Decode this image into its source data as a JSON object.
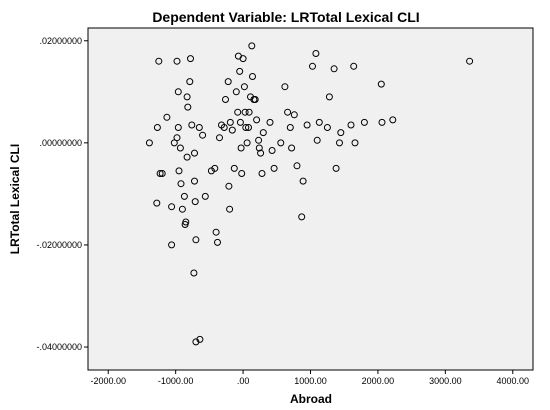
{
  "chart_data": {
    "type": "scatter",
    "title": "Dependent Variable: LRTotal Lexical CLI",
    "xlabel": "Abroad",
    "ylabel": "LRTotal Lexical CLI",
    "xlim": [
      -2300,
      4300
    ],
    "ylim": [
      -0.0445,
      0.0225
    ],
    "x_ticks": [
      -2000,
      -1000,
      0,
      1000,
      2000,
      3000,
      4000
    ],
    "x_tick_labels": [
      "-2000.00",
      "-1000.00",
      ".00",
      "1000.00",
      "2000.00",
      "3000.00",
      "4000.00"
    ],
    "y_ticks": [
      0.02,
      0,
      -0.02,
      -0.04
    ],
    "y_tick_labels": [
      ".02000000",
      ".00000000",
      "-.02000000",
      "-.04000000"
    ],
    "background_color": "#f0f0f0",
    "point_color": "#000000",
    "grid": false,
    "points": [
      {
        "x": -1250,
        "y": 0.016
      },
      {
        "x": -1270,
        "y": 0.003
      },
      {
        "x": -1390,
        "y": 0.0
      },
      {
        "x": -1230,
        "y": -0.006
      },
      {
        "x": -1130,
        "y": 0.005
      },
      {
        "x": -1280,
        "y": -0.0118
      },
      {
        "x": -1200,
        "y": -0.006
      },
      {
        "x": -1060,
        "y": -0.02
      },
      {
        "x": -1060,
        "y": -0.0125
      },
      {
        "x": -1020,
        "y": 0.0
      },
      {
        "x": -980,
        "y": 0.016
      },
      {
        "x": -960,
        "y": 0.01
      },
      {
        "x": -960,
        "y": 0.003
      },
      {
        "x": -980,
        "y": 0.001
      },
      {
        "x": -930,
        "y": -0.001
      },
      {
        "x": -950,
        "y": -0.0055
      },
      {
        "x": -920,
        "y": -0.008
      },
      {
        "x": -900,
        "y": -0.013
      },
      {
        "x": -870,
        "y": -0.0105
      },
      {
        "x": -860,
        "y": -0.016
      },
      {
        "x": -830,
        "y": -0.0028
      },
      {
        "x": -850,
        "y": -0.0155
      },
      {
        "x": -830,
        "y": 0.009
      },
      {
        "x": -820,
        "y": 0.007
      },
      {
        "x": -760,
        "y": 0.0035
      },
      {
        "x": -780,
        "y": 0.0165
      },
      {
        "x": -790,
        "y": 0.012
      },
      {
        "x": -720,
        "y": -0.002
      },
      {
        "x": -720,
        "y": -0.0075
      },
      {
        "x": -710,
        "y": -0.0115
      },
      {
        "x": -700,
        "y": -0.019
      },
      {
        "x": -730,
        "y": -0.0255
      },
      {
        "x": -700,
        "y": -0.039
      },
      {
        "x": -640,
        "y": -0.0385
      },
      {
        "x": -650,
        "y": 0.003
      },
      {
        "x": -600,
        "y": 0.0015
      },
      {
        "x": -560,
        "y": -0.0105
      },
      {
        "x": -470,
        "y": -0.0055
      },
      {
        "x": -420,
        "y": -0.005
      },
      {
        "x": -400,
        "y": -0.0175
      },
      {
        "x": -380,
        "y": -0.0195
      },
      {
        "x": -350,
        "y": 0.001
      },
      {
        "x": -320,
        "y": 0.0035
      },
      {
        "x": -280,
        "y": 0.003
      },
      {
        "x": -260,
        "y": 0.0085
      },
      {
        "x": -220,
        "y": 0.012
      },
      {
        "x": -210,
        "y": -0.0085
      },
      {
        "x": -200,
        "y": -0.013
      },
      {
        "x": -190,
        "y": 0.004
      },
      {
        "x": -160,
        "y": 0.0025
      },
      {
        "x": -130,
        "y": -0.005
      },
      {
        "x": -100,
        "y": 0.01
      },
      {
        "x": -80,
        "y": 0.006
      },
      {
        "x": -70,
        "y": 0.017
      },
      {
        "x": -50,
        "y": 0.014
      },
      {
        "x": -40,
        "y": 0.004
      },
      {
        "x": -30,
        "y": -0.001
      },
      {
        "x": -20,
        "y": -0.006
      },
      {
        "x": 0,
        "y": 0.0165
      },
      {
        "x": 20,
        "y": 0.011
      },
      {
        "x": 30,
        "y": 0.006
      },
      {
        "x": 40,
        "y": 0.003
      },
      {
        "x": 60,
        "y": 0.0
      },
      {
        "x": 80,
        "y": 0.003
      },
      {
        "x": 90,
        "y": 0.006
      },
      {
        "x": 110,
        "y": 0.009
      },
      {
        "x": 130,
        "y": 0.019
      },
      {
        "x": 140,
        "y": 0.013
      },
      {
        "x": 160,
        "y": 0.0085
      },
      {
        "x": 180,
        "y": 0.0085
      },
      {
        "x": 200,
        "y": 0.0045
      },
      {
        "x": 230,
        "y": 0.0005
      },
      {
        "x": 240,
        "y": -0.001
      },
      {
        "x": 260,
        "y": -0.002
      },
      {
        "x": 280,
        "y": -0.006
      },
      {
        "x": 300,
        "y": 0.002
      },
      {
        "x": 400,
        "y": 0.004
      },
      {
        "x": 430,
        "y": -0.0015
      },
      {
        "x": 460,
        "y": -0.005
      },
      {
        "x": 560,
        "y": 0.0
      },
      {
        "x": 620,
        "y": 0.011
      },
      {
        "x": 660,
        "y": 0.006
      },
      {
        "x": 700,
        "y": 0.003
      },
      {
        "x": 720,
        "y": -0.001
      },
      {
        "x": 760,
        "y": 0.0055
      },
      {
        "x": 800,
        "y": -0.0045
      },
      {
        "x": 870,
        "y": -0.0145
      },
      {
        "x": 890,
        "y": -0.0075
      },
      {
        "x": 950,
        "y": 0.0035
      },
      {
        "x": 1030,
        "y": 0.015
      },
      {
        "x": 1080,
        "y": 0.0175
      },
      {
        "x": 1100,
        "y": 0.0005
      },
      {
        "x": 1130,
        "y": 0.004
      },
      {
        "x": 1250,
        "y": 0.003
      },
      {
        "x": 1280,
        "y": 0.009
      },
      {
        "x": 1350,
        "y": 0.0145
      },
      {
        "x": 1380,
        "y": -0.005
      },
      {
        "x": 1430,
        "y": 0.0
      },
      {
        "x": 1450,
        "y": 0.002
      },
      {
        "x": 1600,
        "y": 0.0035
      },
      {
        "x": 1640,
        "y": 0.015
      },
      {
        "x": 1660,
        "y": 0.0
      },
      {
        "x": 1800,
        "y": 0.004
      },
      {
        "x": 2050,
        "y": 0.0115
      },
      {
        "x": 2060,
        "y": 0.004
      },
      {
        "x": 2220,
        "y": 0.0045
      },
      {
        "x": 3360,
        "y": 0.016
      }
    ]
  }
}
